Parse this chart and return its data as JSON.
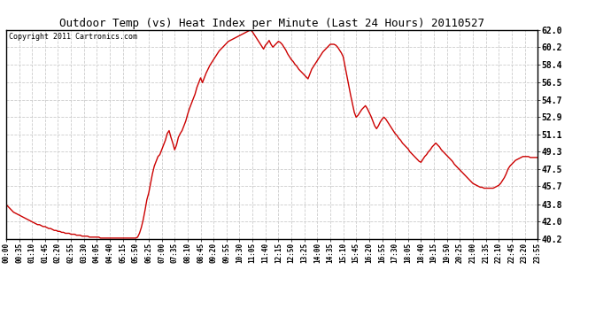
{
  "title": "Outdoor Temp (vs) Heat Index per Minute (Last 24 Hours) 20110527",
  "copyright": "Copyright 2011 Cartronics.com",
  "background_color": "#ffffff",
  "plot_background": "#ffffff",
  "line_color": "#cc0000",
  "grid_color": "#cccccc",
  "ylim": [
    40.2,
    62.0
  ],
  "yticks": [
    40.2,
    42.0,
    43.8,
    45.7,
    47.5,
    49.3,
    51.1,
    52.9,
    54.7,
    56.5,
    58.4,
    60.2,
    62.0
  ],
  "xtick_labels": [
    "00:00",
    "00:35",
    "01:10",
    "01:45",
    "02:20",
    "02:55",
    "03:30",
    "04:05",
    "04:40",
    "05:15",
    "05:50",
    "06:25",
    "07:00",
    "07:35",
    "08:10",
    "08:45",
    "09:20",
    "09:55",
    "10:30",
    "11:05",
    "11:40",
    "12:15",
    "12:50",
    "13:25",
    "14:00",
    "14:35",
    "15:10",
    "15:45",
    "16:20",
    "16:55",
    "17:30",
    "18:05",
    "18:40",
    "19:15",
    "19:50",
    "20:25",
    "21:00",
    "21:35",
    "22:10",
    "22:45",
    "23:20",
    "23:55"
  ],
  "data_profile": {
    "00:00": 43.8,
    "00:05": 43.6,
    "00:10": 43.4,
    "00:15": 43.2,
    "00:20": 43.0,
    "00:25": 42.9,
    "00:30": 42.8,
    "00:35": 42.7,
    "00:40": 42.6,
    "00:45": 42.5,
    "00:50": 42.4,
    "00:55": 42.3,
    "01:00": 42.2,
    "01:05": 42.1,
    "01:10": 42.0,
    "01:15": 41.9,
    "01:20": 41.8,
    "01:25": 41.7,
    "01:30": 41.7,
    "01:35": 41.6,
    "01:40": 41.5,
    "01:45": 41.5,
    "01:50": 41.4,
    "01:55": 41.3,
    "02:00": 41.3,
    "02:05": 41.2,
    "02:10": 41.1,
    "02:15": 41.1,
    "02:20": 41.0,
    "02:25": 41.0,
    "02:30": 40.9,
    "02:35": 40.9,
    "02:40": 40.8,
    "02:45": 40.8,
    "02:50": 40.8,
    "02:55": 40.7,
    "03:00": 40.7,
    "03:05": 40.7,
    "03:10": 40.6,
    "03:15": 40.6,
    "03:20": 40.6,
    "03:25": 40.5,
    "03:30": 40.5,
    "03:35": 40.5,
    "03:40": 40.5,
    "03:45": 40.4,
    "03:50": 40.4,
    "03:55": 40.4,
    "04:00": 40.4,
    "04:05": 40.4,
    "04:10": 40.4,
    "04:15": 40.3,
    "04:20": 40.3,
    "04:25": 40.3,
    "04:30": 40.3,
    "04:35": 40.3,
    "04:40": 40.3,
    "04:45": 40.3,
    "04:50": 40.3,
    "04:55": 40.3,
    "05:00": 40.3,
    "05:05": 40.3,
    "05:10": 40.3,
    "05:15": 40.3,
    "05:20": 40.3,
    "05:25": 40.3,
    "05:30": 40.3,
    "05:35": 40.3,
    "05:40": 40.3,
    "05:45": 40.3,
    "05:50": 40.3,
    "05:55": 40.4,
    "06:00": 40.8,
    "06:05": 41.4,
    "06:10": 42.2,
    "06:15": 43.2,
    "06:20": 44.3,
    "06:25": 45.0,
    "06:30": 46.0,
    "06:35": 47.0,
    "06:40": 47.8,
    "06:45": 48.3,
    "06:50": 48.8,
    "06:55": 49.0,
    "07:00": 49.5,
    "07:05": 50.0,
    "07:10": 50.5,
    "07:15": 51.2,
    "07:20": 51.5,
    "07:25": 50.8,
    "07:30": 50.2,
    "07:35": 49.5,
    "07:40": 50.0,
    "07:45": 50.8,
    "07:50": 51.2,
    "07:55": 51.5,
    "08:00": 52.0,
    "08:05": 52.5,
    "08:10": 53.2,
    "08:15": 53.8,
    "08:20": 54.3,
    "08:25": 54.8,
    "08:30": 55.3,
    "08:35": 56.0,
    "08:40": 56.5,
    "08:45": 57.0,
    "08:50": 56.5,
    "08:55": 57.0,
    "09:00": 57.5,
    "09:05": 57.9,
    "09:10": 58.3,
    "09:15": 58.6,
    "09:20": 58.9,
    "09:25": 59.2,
    "09:30": 59.5,
    "09:35": 59.8,
    "09:40": 60.0,
    "09:45": 60.2,
    "09:50": 60.4,
    "09:55": 60.6,
    "10:00": 60.8,
    "10:05": 60.9,
    "10:10": 61.0,
    "10:15": 61.1,
    "10:20": 61.2,
    "10:25": 61.3,
    "10:30": 61.4,
    "10:35": 61.5,
    "10:40": 61.6,
    "10:45": 61.7,
    "10:50": 61.8,
    "10:55": 61.9,
    "11:00": 62.0,
    "11:05": 61.8,
    "11:10": 61.5,
    "11:15": 61.2,
    "11:20": 60.9,
    "11:25": 60.6,
    "11:30": 60.3,
    "11:35": 60.0,
    "11:40": 60.4,
    "11:45": 60.6,
    "11:50": 60.9,
    "11:55": 60.5,
    "12:00": 60.2,
    "12:05": 60.4,
    "12:10": 60.6,
    "12:15": 60.8,
    "12:20": 60.7,
    "12:25": 60.5,
    "12:30": 60.2,
    "12:35": 59.9,
    "12:40": 59.5,
    "12:45": 59.2,
    "12:50": 58.9,
    "12:55": 58.7,
    "13:00": 58.4,
    "13:05": 58.2,
    "13:10": 57.9,
    "13:15": 57.7,
    "13:20": 57.5,
    "13:25": 57.3,
    "13:30": 57.1,
    "13:35": 56.9,
    "13:40": 57.4,
    "13:45": 57.9,
    "13:50": 58.2,
    "13:55": 58.5,
    "14:00": 58.8,
    "14:05": 59.1,
    "14:10": 59.4,
    "14:15": 59.7,
    "14:20": 59.9,
    "14:25": 60.1,
    "14:30": 60.3,
    "14:35": 60.5,
    "14:40": 60.5,
    "14:45": 60.5,
    "14:50": 60.4,
    "14:55": 60.2,
    "15:00": 59.9,
    "15:05": 59.6,
    "15:10": 59.2,
    "15:15": 58.2,
    "15:20": 57.2,
    "15:25": 56.2,
    "15:30": 55.2,
    "15:35": 54.3,
    "15:40": 53.4,
    "15:45": 52.9,
    "15:50": 53.1,
    "15:55": 53.4,
    "16:00": 53.7,
    "16:05": 53.9,
    "16:10": 54.1,
    "16:15": 53.8,
    "16:20": 53.4,
    "16:25": 53.0,
    "16:30": 52.5,
    "16:35": 52.0,
    "16:40": 51.7,
    "16:45": 52.0,
    "16:50": 52.4,
    "16:55": 52.7,
    "17:00": 52.9,
    "17:05": 52.7,
    "17:10": 52.4,
    "17:15": 52.1,
    "17:20": 51.8,
    "17:25": 51.5,
    "17:30": 51.2,
    "17:35": 51.0,
    "17:40": 50.7,
    "17:45": 50.5,
    "17:50": 50.2,
    "17:55": 50.0,
    "18:00": 49.8,
    "18:05": 49.6,
    "18:10": 49.3,
    "18:15": 49.1,
    "18:20": 48.9,
    "18:25": 48.7,
    "18:30": 48.5,
    "18:35": 48.3,
    "18:40": 48.2,
    "18:45": 48.5,
    "18:50": 48.8,
    "18:55": 49.0,
    "19:00": 49.3,
    "19:05": 49.5,
    "19:10": 49.8,
    "19:15": 50.0,
    "19:20": 50.2,
    "19:25": 50.0,
    "19:30": 49.8,
    "19:35": 49.5,
    "19:40": 49.3,
    "19:45": 49.1,
    "19:50": 48.9,
    "19:55": 48.7,
    "20:00": 48.5,
    "20:05": 48.3,
    "20:10": 48.0,
    "20:15": 47.8,
    "20:20": 47.6,
    "20:25": 47.4,
    "20:30": 47.2,
    "20:35": 47.0,
    "20:40": 46.8,
    "20:45": 46.6,
    "20:50": 46.4,
    "20:55": 46.2,
    "21:00": 46.0,
    "21:05": 45.9,
    "21:10": 45.8,
    "21:15": 45.7,
    "21:20": 45.6,
    "21:25": 45.6,
    "21:30": 45.5,
    "21:35": 45.5,
    "21:40": 45.5,
    "21:45": 45.5,
    "21:50": 45.5,
    "21:55": 45.5,
    "22:00": 45.6,
    "22:05": 45.7,
    "22:10": 45.8,
    "22:15": 46.0,
    "22:20": 46.3,
    "22:25": 46.6,
    "22:30": 47.0,
    "22:35": 47.5,
    "22:40": 47.8,
    "22:45": 48.0,
    "22:50": 48.2,
    "22:55": 48.4,
    "23:00": 48.5,
    "23:05": 48.6,
    "23:10": 48.7,
    "23:15": 48.8,
    "23:20": 48.8,
    "23:25": 48.8,
    "23:30": 48.8,
    "23:35": 48.7,
    "23:40": 48.7,
    "23:45": 48.7,
    "23:50": 48.7,
    "23:55": 48.7
  }
}
